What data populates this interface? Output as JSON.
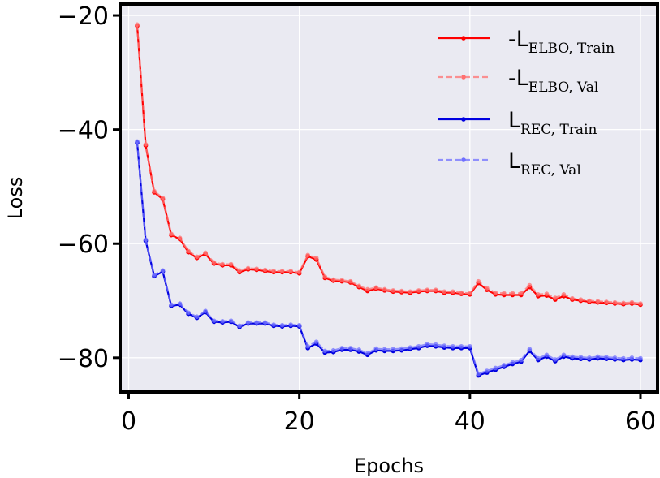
{
  "chart_data": {
    "type": "line",
    "xlabel": "Epochs",
    "ylabel": "Loss",
    "xlim": [
      -1,
      62
    ],
    "ylim": [
      -86,
      -18
    ],
    "xticks": [
      0,
      20,
      40,
      60
    ],
    "yticks": [
      -20,
      -40,
      -60,
      -80
    ],
    "xtick_labels": [
      "0",
      "20",
      "40",
      "60"
    ],
    "ytick_labels": [
      "−20",
      "−40",
      "−60",
      "−80"
    ],
    "grid": true,
    "legend_position": "top-right",
    "x": [
      1,
      2,
      3,
      4,
      5,
      6,
      7,
      8,
      9,
      10,
      11,
      12,
      13,
      14,
      15,
      16,
      17,
      18,
      19,
      20,
      21,
      22,
      23,
      24,
      25,
      26,
      27,
      28,
      29,
      30,
      31,
      32,
      33,
      34,
      35,
      36,
      37,
      38,
      39,
      40,
      41,
      42,
      43,
      44,
      45,
      46,
      47,
      48,
      49,
      50,
      51,
      52,
      53,
      54,
      55,
      56,
      57,
      58,
      59,
      60
    ],
    "series": [
      {
        "name_main": "-L",
        "name_sub": "ELBO, Train",
        "color": "#ff0000",
        "style": "solid",
        "values": [
          -21.8,
          -42.8,
          -51.0,
          -52.2,
          -58.5,
          -59.2,
          -61.5,
          -62.5,
          -61.8,
          -63.5,
          -63.8,
          -63.8,
          -65.0,
          -64.5,
          -64.6,
          -64.8,
          -65.0,
          -65.0,
          -65.0,
          -65.2,
          -62.2,
          -62.8,
          -66.0,
          -66.5,
          -66.6,
          -66.8,
          -67.6,
          -68.3,
          -67.9,
          -68.2,
          -68.4,
          -68.5,
          -68.6,
          -68.4,
          -68.3,
          -68.3,
          -68.6,
          -68.6,
          -68.8,
          -68.9,
          -66.9,
          -68.1,
          -68.9,
          -69.0,
          -69.0,
          -69.0,
          -67.6,
          -69.2,
          -69.1,
          -69.8,
          -69.2,
          -69.8,
          -70.0,
          -70.2,
          -70.3,
          -70.4,
          -70.5,
          -70.6,
          -70.5,
          -70.7
        ]
      },
      {
        "name_main": "-L",
        "name_sub": "ELBO, Val",
        "color": "#ff7070",
        "style": "dashed",
        "values": [
          -21.6,
          -42.6,
          -50.8,
          -52.0,
          -58.3,
          -59.0,
          -61.3,
          -62.3,
          -61.6,
          -63.3,
          -63.6,
          -63.6,
          -64.7,
          -64.3,
          -64.4,
          -64.6,
          -64.8,
          -64.8,
          -64.8,
          -65.0,
          -62.0,
          -62.5,
          -65.8,
          -66.3,
          -66.4,
          -66.6,
          -67.4,
          -68.0,
          -67.7,
          -68.0,
          -68.2,
          -68.3,
          -68.4,
          -68.2,
          -68.1,
          -68.1,
          -68.4,
          -68.4,
          -68.6,
          -68.7,
          -66.6,
          -67.8,
          -68.6,
          -68.7,
          -68.7,
          -68.7,
          -67.3,
          -68.9,
          -68.8,
          -69.5,
          -68.9,
          -69.6,
          -69.8,
          -70.0,
          -70.1,
          -70.2,
          -70.3,
          -70.4,
          -70.3,
          -70.5
        ]
      },
      {
        "name_main": "L",
        "name_sub": "REC, Train",
        "color": "#0000e0",
        "style": "solid",
        "values": [
          -42.3,
          -59.5,
          -65.7,
          -64.9,
          -70.9,
          -70.7,
          -72.3,
          -73.0,
          -72.0,
          -73.7,
          -73.8,
          -73.7,
          -74.6,
          -74.0,
          -74.0,
          -74.0,
          -74.4,
          -74.5,
          -74.4,
          -74.5,
          -78.3,
          -77.5,
          -79.1,
          -79.0,
          -78.6,
          -78.6,
          -78.9,
          -79.5,
          -78.7,
          -78.8,
          -78.8,
          -78.7,
          -78.5,
          -78.3,
          -77.9,
          -78.0,
          -78.2,
          -78.3,
          -78.3,
          -78.3,
          -83.1,
          -82.6,
          -82.1,
          -81.6,
          -81.1,
          -80.7,
          -78.8,
          -80.4,
          -79.8,
          -80.6,
          -79.8,
          -80.1,
          -80.2,
          -80.3,
          -80.1,
          -80.2,
          -80.3,
          -80.4,
          -80.3,
          -80.4
        ]
      },
      {
        "name_main": "L",
        "name_sub": "REC, Val",
        "color": "#7070ff",
        "style": "dashed",
        "values": [
          -42.1,
          -59.3,
          -65.5,
          -64.7,
          -70.7,
          -70.5,
          -72.1,
          -72.8,
          -71.8,
          -73.5,
          -73.6,
          -73.5,
          -74.4,
          -73.8,
          -73.8,
          -73.8,
          -74.2,
          -74.3,
          -74.2,
          -74.3,
          -78.0,
          -77.2,
          -78.8,
          -78.7,
          -78.3,
          -78.3,
          -78.6,
          -79.2,
          -78.4,
          -78.5,
          -78.5,
          -78.4,
          -78.2,
          -78.0,
          -77.6,
          -77.7,
          -77.9,
          -78.0,
          -78.0,
          -78.0,
          -82.8,
          -82.3,
          -81.8,
          -81.3,
          -80.8,
          -80.4,
          -78.5,
          -80.1,
          -79.5,
          -80.3,
          -79.5,
          -79.8,
          -79.9,
          -80.0,
          -79.8,
          -79.9,
          -80.0,
          -80.1,
          -80.0,
          -80.1
        ]
      }
    ]
  }
}
